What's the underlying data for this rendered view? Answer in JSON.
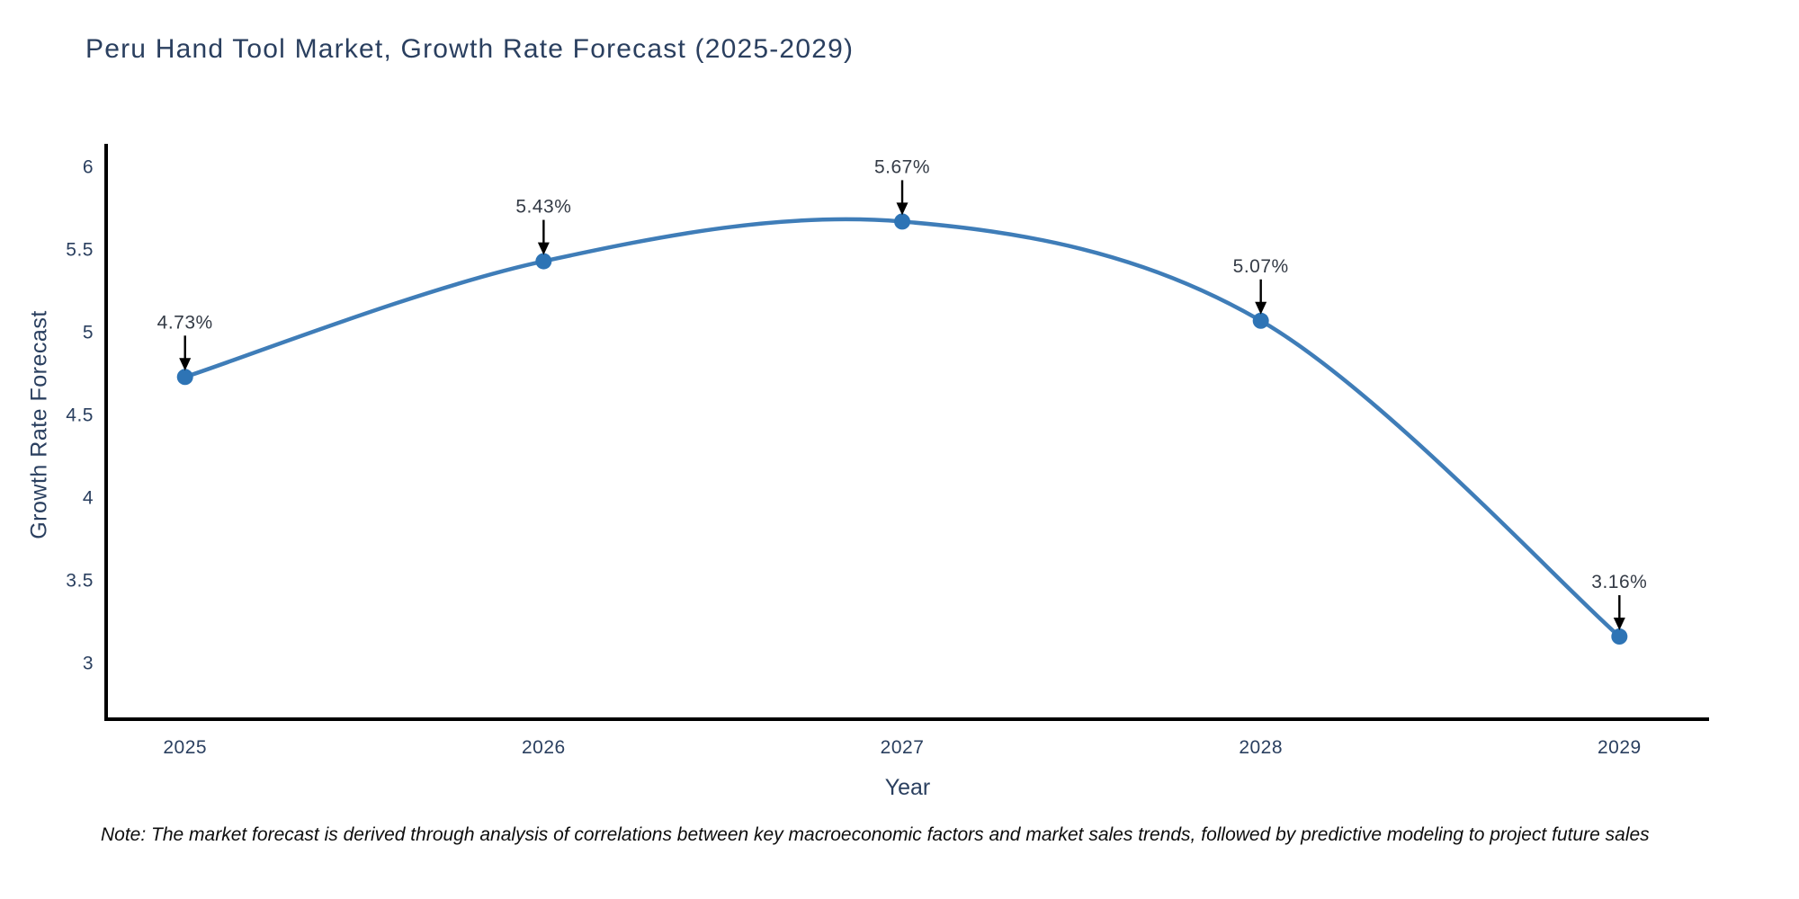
{
  "title": "Peru Hand Tool Market, Growth Rate Forecast (2025-2029)",
  "note": "Note: The market forecast is derived through analysis of correlations between key macroeconomic factors and market sales trends, followed by predictive modeling to project future sales",
  "chart_data": {
    "type": "line",
    "line_shape": "spline",
    "x": [
      2025,
      2026,
      2027,
      2028,
      2029
    ],
    "values": [
      4.73,
      5.43,
      5.67,
      5.07,
      3.16
    ],
    "point_labels": [
      "4.73%",
      "5.43%",
      "5.67%",
      "5.07%",
      "3.16%"
    ],
    "title": "Peru Hand Tool Market, Growth Rate Forecast (2025-2029)",
    "xlabel": "Year",
    "ylabel": "Growth Rate Forecast",
    "xtick_labels": [
      "2025",
      "2026",
      "2027",
      "2028",
      "2029"
    ],
    "yticks": [
      3,
      3.5,
      4,
      4.5,
      5,
      5.5,
      6
    ],
    "ytick_labels": [
      "3",
      "3.5",
      "4",
      "4.5",
      "5",
      "5.5",
      "6"
    ],
    "xlim": [
      2024.78,
      2029.25
    ],
    "ylim": [
      2.66,
      6.14
    ],
    "grid": false,
    "legend": null,
    "annotations_arrow": "down-arrow-to-point",
    "colors": {
      "line": "#3f7db8",
      "marker": "#2e74b5",
      "axis_line": "#000000",
      "tick_text": "#2a3f5f",
      "annotation_text": "#343b46",
      "note_text": "#0d0d0d",
      "background": "#ffffff"
    }
  }
}
